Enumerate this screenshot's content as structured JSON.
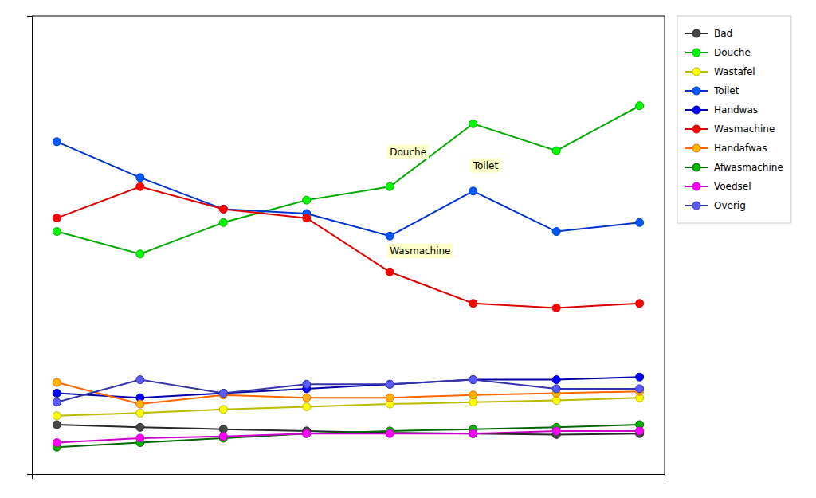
{
  "chart_data": {
    "type": "line",
    "x": [
      0,
      1,
      2,
      3,
      4,
      5,
      6,
      7
    ],
    "series": [
      {
        "name": "Bad",
        "color": "#282828",
        "values": [
          4.5,
          4.2,
          4.0,
          3.8,
          3.6,
          3.5,
          3.4,
          3.5
        ]
      },
      {
        "name": "Douche",
        "color": "#00aa00",
        "values": [
          26.0,
          23.5,
          27.0,
          29.5,
          31.0,
          38.0,
          35.0,
          40.0
        ]
      },
      {
        "name": "Wastafel",
        "color": "#bbbb00",
        "values": [
          5.5,
          5.8,
          6.2,
          6.5,
          6.8,
          7.0,
          7.2,
          7.5
        ]
      },
      {
        "name": "Toilet",
        "color": "#0033cc",
        "values": [
          36.0,
          32.0,
          28.5,
          28.0,
          25.5,
          30.5,
          26.0,
          27.0
        ]
      },
      {
        "name": "Handwas",
        "color": "#0000aa",
        "values": [
          8.0,
          7.5,
          8.0,
          8.5,
          9.0,
          9.5,
          9.5,
          9.8
        ]
      },
      {
        "name": "Wasmachine",
        "color": "#dd0000",
        "values": [
          27.5,
          31.0,
          28.5,
          27.5,
          21.5,
          18.0,
          17.5,
          18.0
        ]
      },
      {
        "name": "Handafwas",
        "color": "#ff6600",
        "values": [
          9.2,
          6.8,
          7.8,
          7.5,
          7.5,
          7.8,
          8.0,
          8.2
        ]
      },
      {
        "name": "Afwasmachine",
        "color": "#006600",
        "values": [
          2.0,
          2.5,
          3.0,
          3.5,
          3.8,
          4.0,
          4.2,
          4.5
        ]
      },
      {
        "name": "Voedsel",
        "color": "#cc00cc",
        "values": [
          2.5,
          3.0,
          3.2,
          3.5,
          3.5,
          3.5,
          3.8,
          3.8
        ]
      },
      {
        "name": "Overig",
        "color": "#3333aa",
        "values": [
          7.0,
          9.5,
          8.0,
          9.0,
          9.0,
          9.5,
          8.5,
          8.5
        ]
      }
    ],
    "annotations": [
      {
        "text": "Douche",
        "x": 4,
        "y": 34.5
      },
      {
        "text": "Toilet",
        "x": 5,
        "y": 33.0
      },
      {
        "text": "Wasmachine",
        "x": 4,
        "y": 23.5
      }
    ],
    "xlim": [
      -0.3,
      7.3
    ],
    "ylim": [
      -1,
      50
    ],
    "xticks": [],
    "yticks": [],
    "tick_labels": false,
    "grid": false,
    "legend": "right",
    "marker": "circle"
  }
}
